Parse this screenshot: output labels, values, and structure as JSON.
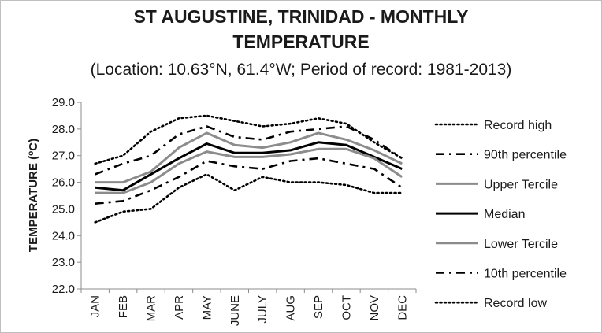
{
  "title_line1": "ST AUGUSTINE, TRINIDAD - MONTHLY",
  "title_line2": "TEMPERATURE",
  "subtitle": "(Location: 10.63°N, 61.4°W; Period of record: 1981-2013)",
  "chart_data": {
    "type": "line",
    "title": "ST AUGUSTINE, TRINIDAD - MONTHLY TEMPERATURE",
    "subtitle": "(Location: 10.63°N, 61.4°W; Period of record: 1981-2013)",
    "ylabel": "TEMPERATURE (ºC)",
    "ylabel_main": "TEMPERATURE (",
    "ylabel_sup": "o",
    "ylabel_end": "C)",
    "xlabel": "",
    "ylim": [
      22.0,
      29.0
    ],
    "yticks": [
      "22.0",
      "23.0",
      "24.0",
      "25.0",
      "26.0",
      "27.0",
      "28.0",
      "29.0"
    ],
    "categories": [
      "JAN",
      "FEB",
      "MAR",
      "APR",
      "MAY",
      "JUNE",
      "JULY",
      "AUG",
      "SEP",
      "OCT",
      "NOV",
      "DEC"
    ],
    "legend_position": "right",
    "grid": false,
    "series": [
      {
        "name": "Record high",
        "style": "dotted",
        "color": "#000000",
        "values": [
          26.7,
          27.0,
          27.9,
          28.4,
          28.5,
          28.3,
          28.1,
          28.2,
          28.4,
          28.2,
          27.5,
          26.9
        ]
      },
      {
        "name": "90th percentile",
        "style": "dashdot",
        "color": "#000000",
        "values": [
          26.3,
          26.7,
          27.0,
          27.8,
          28.1,
          27.7,
          27.6,
          27.9,
          28.0,
          28.1,
          27.6,
          26.9
        ]
      },
      {
        "name": "Upper Tercile",
        "style": "solid",
        "color": "#8c8c8c",
        "values": [
          26.0,
          26.0,
          26.4,
          27.3,
          27.85,
          27.4,
          27.3,
          27.5,
          27.85,
          27.6,
          27.2,
          26.7
        ]
      },
      {
        "name": "Median",
        "style": "solid",
        "color": "#000000",
        "values": [
          25.8,
          25.7,
          26.3,
          26.9,
          27.45,
          27.1,
          27.1,
          27.2,
          27.5,
          27.4,
          26.95,
          26.5
        ]
      },
      {
        "name": "Lower Tercile",
        "style": "solid",
        "color": "#8c8c8c",
        "values": [
          25.6,
          25.6,
          26.0,
          26.7,
          27.15,
          26.95,
          26.95,
          27.05,
          27.25,
          27.25,
          26.9,
          26.2
        ]
      },
      {
        "name": "10th percentile",
        "style": "dashdot",
        "color": "#000000",
        "values": [
          25.2,
          25.3,
          25.7,
          26.2,
          26.8,
          26.6,
          26.5,
          26.8,
          26.9,
          26.7,
          26.5,
          25.8
        ]
      },
      {
        "name": "Record low",
        "style": "dotted",
        "color": "#000000",
        "values": [
          24.5,
          24.9,
          25.0,
          25.8,
          26.3,
          25.7,
          26.2,
          26.0,
          26.0,
          25.9,
          25.6,
          25.6
        ]
      }
    ]
  }
}
